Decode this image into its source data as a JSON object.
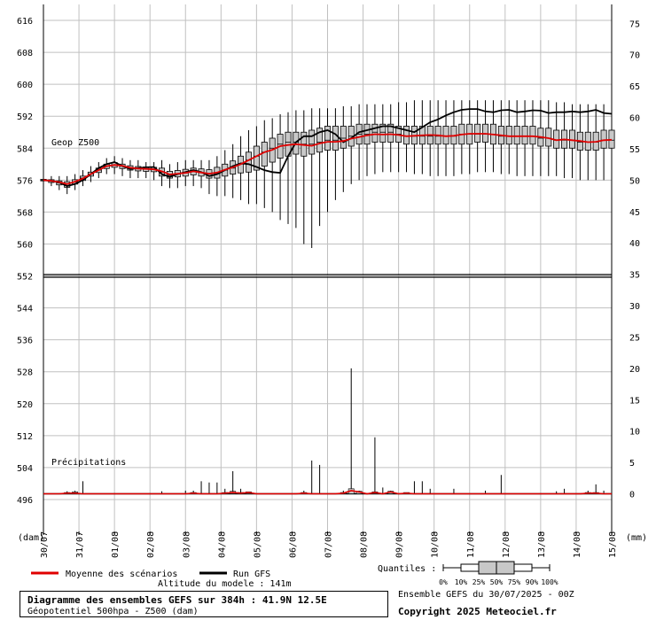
{
  "chart_data": {
    "type": "box",
    "title": "Diagramme des ensembles GEFS sur 384h : 41.9N 12.5E",
    "subtitle": "Géopotentiel 500hpa - Z500 (dam)",
    "run_label": "Ensemble GEFS du 30/07/2025 - 00Z",
    "copyright": "Copyright 2025 Meteociel.fr",
    "altitude": "Altitude du modele : 141m",
    "geop_label": "Geop Z500",
    "precip_label": "Précipitations",
    "left_unit": "(dam)",
    "right_unit": "(mm)",
    "left_ticks": [
      "616",
      "608",
      "600",
      "592",
      "584",
      "576",
      "568",
      "560",
      "552",
      "544",
      "536",
      "528",
      "520",
      "512",
      "504",
      "496"
    ],
    "right_ticks": [
      "75",
      "70",
      "65",
      "60",
      "55",
      "50",
      "45",
      "40",
      "35",
      "30",
      "25",
      "20",
      "15",
      "10",
      "5",
      "0"
    ],
    "left_range": [
      488,
      620
    ],
    "right_range": [
      -6,
      78
    ],
    "dates": [
      "30/07",
      "31/07",
      "01/08",
      "02/08",
      "03/08",
      "04/08",
      "05/08",
      "06/08",
      "07/08",
      "08/08",
      "09/08",
      "10/08",
      "11/08",
      "12/08",
      "13/08",
      "14/08",
      "15/08"
    ],
    "legend": {
      "mean": "Moyenne des scénarios",
      "run": "Run GFS",
      "quantiles_title": "Quantiles :",
      "quantile_labels": [
        "0%",
        "10%",
        "25%",
        "50%",
        "75%",
        "90%",
        "100%"
      ]
    },
    "colors": {
      "mean": "#e00000",
      "run": "#000000",
      "box": "#c8c8c8",
      "grid": "#c0c0c0"
    },
    "geop": {
      "step_h": 6,
      "mean": [
        576,
        575.8,
        575.5,
        575,
        575.6,
        576.4,
        577.5,
        578.5,
        579.5,
        579.8,
        579.6,
        579.1,
        578.9,
        578.8,
        578.7,
        578.2,
        577.4,
        577.6,
        577.8,
        578.2,
        577.9,
        577.6,
        577.9,
        578.6,
        579.2,
        580,
        581,
        582,
        583,
        583.6,
        584.5,
        584.8,
        585,
        584.8,
        584.6,
        585.2,
        585.6,
        585.6,
        585.8,
        586.4,
        586.8,
        587.2,
        587.5,
        587.4,
        587.5,
        587.3,
        587,
        587.1,
        587.2,
        587.3,
        587.2,
        587,
        587.1,
        587.4,
        587.6,
        587.6,
        587.6,
        587.4,
        587.2,
        587,
        587,
        587,
        587,
        586.8,
        586.5,
        586,
        586.2,
        586,
        585.8,
        585.5,
        585.6,
        586,
        586.1
      ],
      "run": [
        576,
        575.8,
        575.4,
        574.5,
        575,
        576,
        577.5,
        579,
        580,
        580.5,
        579.5,
        578.8,
        579,
        579.2,
        579.3,
        577.5,
        576.8,
        577.5,
        578,
        578.5,
        578,
        577,
        577.5,
        578.5,
        579.5,
        580.2,
        580,
        579.3,
        578.5,
        578,
        577.8,
        582,
        585.5,
        587,
        587,
        588,
        588.5,
        587.5,
        585.5,
        586.5,
        588,
        588.5,
        589,
        589.5,
        589.5,
        589,
        588.5,
        588,
        589.2,
        590.5,
        591.2,
        592.2,
        593,
        593.6,
        593.8,
        593.8,
        593.2,
        593,
        593.5,
        593.6,
        593,
        593.2,
        593.5,
        593.4,
        592.8,
        593,
        593,
        593.2,
        593,
        593.2,
        593.6,
        592.8,
        592.6
      ],
      "boxes": [
        [
          575.5,
          575.8,
          576,
          576.2,
          576.5
        ],
        [
          575,
          575.4,
          575.8,
          576.1,
          576.4
        ],
        [
          574.2,
          574.8,
          575.3,
          575.8,
          576.3
        ],
        [
          573.5,
          574.2,
          575,
          575.6,
          576.1
        ],
        [
          574.5,
          575,
          575.5,
          576.1,
          576.6
        ],
        [
          575.2,
          575.9,
          576.5,
          577,
          577.5
        ],
        [
          576.5,
          577,
          577.5,
          578,
          578.6
        ],
        [
          577.2,
          577.9,
          578.5,
          579,
          579.6
        ],
        [
          578.2,
          578.9,
          579.5,
          580,
          580.6
        ],
        [
          578.5,
          579.2,
          579.8,
          580.4,
          581
        ],
        [
          578.2,
          578.9,
          579.5,
          580,
          580.6
        ],
        [
          577.8,
          578.5,
          579,
          579.6,
          580.2
        ],
        [
          577.6,
          578.3,
          578.8,
          579.4,
          580
        ],
        [
          577.5,
          578.2,
          578.8,
          579.3,
          579.9
        ],
        [
          577.4,
          578.1,
          578.6,
          579.2,
          579.8
        ],
        [
          576,
          577,
          578,
          579,
          580
        ],
        [
          575.5,
          576.5,
          577.2,
          578.2,
          579
        ],
        [
          575.8,
          576.8,
          577.5,
          578.4,
          579.3
        ],
        [
          576,
          577,
          577.8,
          578.7,
          579.6
        ],
        [
          576.2,
          577.3,
          578.2,
          579,
          579.9
        ],
        [
          575.8,
          577,
          577.9,
          578.8,
          579.6
        ],
        [
          575,
          576.5,
          577.6,
          578.6,
          579.6
        ],
        [
          574.5,
          576.5,
          577.8,
          579.2,
          580.5
        ],
        [
          574.8,
          577,
          578.5,
          580,
          581.5
        ],
        [
          575,
          577.5,
          579,
          580.8,
          582.5
        ],
        [
          574.5,
          577.8,
          580,
          582,
          584
        ],
        [
          574,
          578,
          581,
          583,
          585.5
        ],
        [
          574.5,
          578.5,
          582,
          584.5,
          586.5
        ],
        [
          575,
          579.5,
          583,
          585.5,
          587.5
        ],
        [
          576.5,
          580.5,
          584,
          586.5,
          588.5
        ],
        [
          577.5,
          581.5,
          585,
          587.5,
          589.5
        ],
        [
          578,
          582,
          585.5,
          588,
          590
        ],
        [
          578.5,
          582.5,
          585.5,
          588,
          590.5
        ],
        [
          578,
          582,
          585,
          588,
          590
        ],
        [
          578.5,
          582.5,
          585,
          588.5,
          590.5
        ],
        [
          579,
          583,
          585.5,
          589,
          591
        ],
        [
          579.5,
          583.5,
          586,
          589.5,
          591.5
        ],
        [
          580,
          583.5,
          586,
          589.5,
          591.5
        ],
        [
          580.5,
          584,
          586.5,
          589.5,
          591.5
        ],
        [
          581,
          584.5,
          587,
          589.5,
          591.5
        ],
        [
          581.5,
          585,
          587.5,
          590,
          592
        ],
        [
          582,
          585,
          587.5,
          590,
          592
        ],
        [
          582,
          585.5,
          588,
          590,
          592
        ],
        [
          582.5,
          585.5,
          588,
          590,
          592
        ],
        [
          582.5,
          585.5,
          588,
          590,
          592
        ],
        [
          582.5,
          585.5,
          587.5,
          589.5,
          591.5
        ],
        [
          582,
          585,
          587,
          589.5,
          591.5
        ],
        [
          582,
          585,
          587,
          589.5,
          591.5
        ],
        [
          582,
          585,
          587,
          589.5,
          591.5
        ],
        [
          582,
          585,
          587,
          589.5,
          591.5
        ],
        [
          582,
          585,
          587,
          589.5,
          591.5
        ],
        [
          582,
          585,
          587,
          589.5,
          591.5
        ],
        [
          582,
          585,
          587,
          589.5,
          591.5
        ],
        [
          582,
          585,
          587.5,
          590,
          592
        ],
        [
          582,
          585,
          587.5,
          590,
          592
        ],
        [
          582.5,
          585.5,
          587.5,
          590,
          592
        ],
        [
          582.5,
          585.5,
          587.5,
          590,
          592
        ],
        [
          582,
          585,
          587.5,
          590,
          592
        ],
        [
          582,
          585,
          587,
          589.5,
          591.5
        ],
        [
          582,
          585,
          587,
          589.5,
          591.5
        ],
        [
          582,
          585,
          587,
          589.5,
          591.5
        ],
        [
          582,
          585,
          587,
          589.5,
          591.5
        ],
        [
          582,
          585,
          587,
          589.5,
          591.5
        ],
        [
          581.5,
          584.5,
          586.5,
          589,
          591
        ],
        [
          581.5,
          584.5,
          586.5,
          589,
          591
        ],
        [
          581,
          584,
          586,
          588.5,
          590.5
        ],
        [
          581,
          584,
          586,
          588.5,
          590.5
        ],
        [
          581,
          584,
          586,
          588.5,
          590.5
        ],
        [
          580.5,
          583.5,
          585.5,
          588,
          590
        ],
        [
          580.5,
          583.5,
          585.5,
          588,
          590
        ],
        [
          580.5,
          583.5,
          585.5,
          588,
          590
        ],
        [
          581,
          584,
          586,
          588.5,
          590.5
        ],
        [
          581,
          584,
          586,
          588.5,
          590.5
        ]
      ],
      "whiskers": [
        [
          575,
          577
        ],
        [
          574.5,
          577
        ],
        [
          573.5,
          577
        ],
        [
          572.5,
          577
        ],
        [
          573.5,
          577.5
        ],
        [
          574.5,
          578.5
        ],
        [
          575.5,
          579.5
        ],
        [
          576.5,
          580.5
        ],
        [
          577.5,
          581.5
        ],
        [
          577.5,
          582
        ],
        [
          577,
          581.5
        ],
        [
          576.5,
          581
        ],
        [
          576.5,
          581
        ],
        [
          576.5,
          580.5
        ],
        [
          576,
          580.5
        ],
        [
          574.5,
          581
        ],
        [
          574,
          580
        ],
        [
          574,
          580.5
        ],
        [
          574.5,
          581
        ],
        [
          574.5,
          581
        ],
        [
          574,
          581
        ],
        [
          572.5,
          581
        ],
        [
          572,
          582
        ],
        [
          572,
          583.5
        ],
        [
          571.5,
          585
        ],
        [
          571,
          587
        ],
        [
          570,
          588.5
        ],
        [
          570,
          589.5
        ],
        [
          569,
          591
        ],
        [
          568,
          591.5
        ],
        [
          566,
          592.5
        ],
        [
          565,
          593
        ],
        [
          564,
          593.5
        ],
        [
          560,
          593.5
        ],
        [
          559,
          594
        ],
        [
          564.5,
          594
        ],
        [
          568,
          594
        ],
        [
          571,
          594
        ],
        [
          573,
          594.5
        ],
        [
          575,
          594.5
        ],
        [
          576,
          595
        ],
        [
          577,
          595
        ],
        [
          577.5,
          595
        ],
        [
          578,
          595
        ],
        [
          578,
          595
        ],
        [
          578,
          595.5
        ],
        [
          578,
          595.5
        ],
        [
          577.5,
          596
        ],
        [
          577.5,
          596
        ],
        [
          577,
          596
        ],
        [
          577,
          596
        ],
        [
          577,
          596
        ],
        [
          577,
          596
        ],
        [
          577.5,
          596
        ],
        [
          577.5,
          596
        ],
        [
          578,
          596
        ],
        [
          578,
          596
        ],
        [
          578,
          596
        ],
        [
          577.5,
          596
        ],
        [
          577.5,
          596
        ],
        [
          577,
          596
        ],
        [
          577,
          596
        ],
        [
          577,
          596
        ],
        [
          577,
          596
        ],
        [
          577,
          596
        ],
        [
          577,
          595.5
        ],
        [
          576.5,
          595.5
        ],
        [
          576.5,
          595
        ],
        [
          576,
          595
        ],
        [
          576,
          595
        ],
        [
          576,
          595
        ],
        [
          576,
          595
        ],
        [
          576,
          595
        ]
      ]
    },
    "precip": {
      "mean": [
        0,
        0,
        0,
        0.1,
        0.1,
        0,
        0,
        0,
        0,
        0,
        0,
        0,
        0,
        0,
        0,
        0,
        0,
        0,
        0,
        0.1,
        0,
        0,
        0,
        0.1,
        0.2,
        0.1,
        0.2,
        0,
        0,
        0,
        0,
        0,
        0,
        0.1,
        0,
        0,
        0,
        0,
        0.1,
        0.5,
        0.3,
        0,
        0.2,
        0,
        0.3,
        0,
        0.1,
        0,
        0,
        0,
        0,
        0,
        0,
        0,
        0,
        0,
        0,
        0,
        0,
        0,
        0,
        0,
        0,
        0,
        0,
        0,
        0,
        0,
        0,
        0.1,
        0.1,
        0,
        0
      ],
      "box_hi": [
        0,
        0,
        0,
        0.2,
        0.3,
        0,
        0,
        0,
        0,
        0,
        0,
        0,
        0,
        0,
        0,
        0,
        0,
        0,
        0,
        0.2,
        0,
        0,
        0,
        0.2,
        0.4,
        0.2,
        0.3,
        0,
        0,
        0,
        0,
        0,
        0,
        0.2,
        0,
        0,
        0,
        0,
        0.2,
        0.8,
        0.4,
        0,
        0.3,
        0,
        0.4,
        0,
        0.2,
        0,
        0,
        0,
        0,
        0,
        0,
        0,
        0,
        0,
        0,
        0,
        0,
        0,
        0,
        0,
        0,
        0,
        0,
        0,
        0,
        0,
        0,
        0.2,
        0.2,
        0,
        0
      ],
      "max": [
        0,
        0,
        0,
        0.4,
        0.5,
        2,
        0,
        0,
        0,
        0,
        0,
        0,
        0,
        0,
        0,
        0.4,
        0,
        0,
        0.5,
        0.5,
        2,
        1.8,
        1.8,
        0.8,
        3.6,
        0.8,
        0.3,
        0,
        0,
        0,
        0,
        0,
        0,
        0.5,
        5.3,
        4.6,
        0,
        0,
        0.5,
        20,
        0.5,
        0,
        9,
        1,
        0.5,
        0,
        0,
        2,
        2,
        0.8,
        0,
        0,
        0.8,
        0,
        0,
        0,
        0.5,
        0,
        3,
        0,
        0,
        0,
        0,
        0,
        0,
        0.4,
        0.8,
        0,
        0,
        0.5,
        1.5,
        0.5,
        1.8
      ]
    }
  }
}
